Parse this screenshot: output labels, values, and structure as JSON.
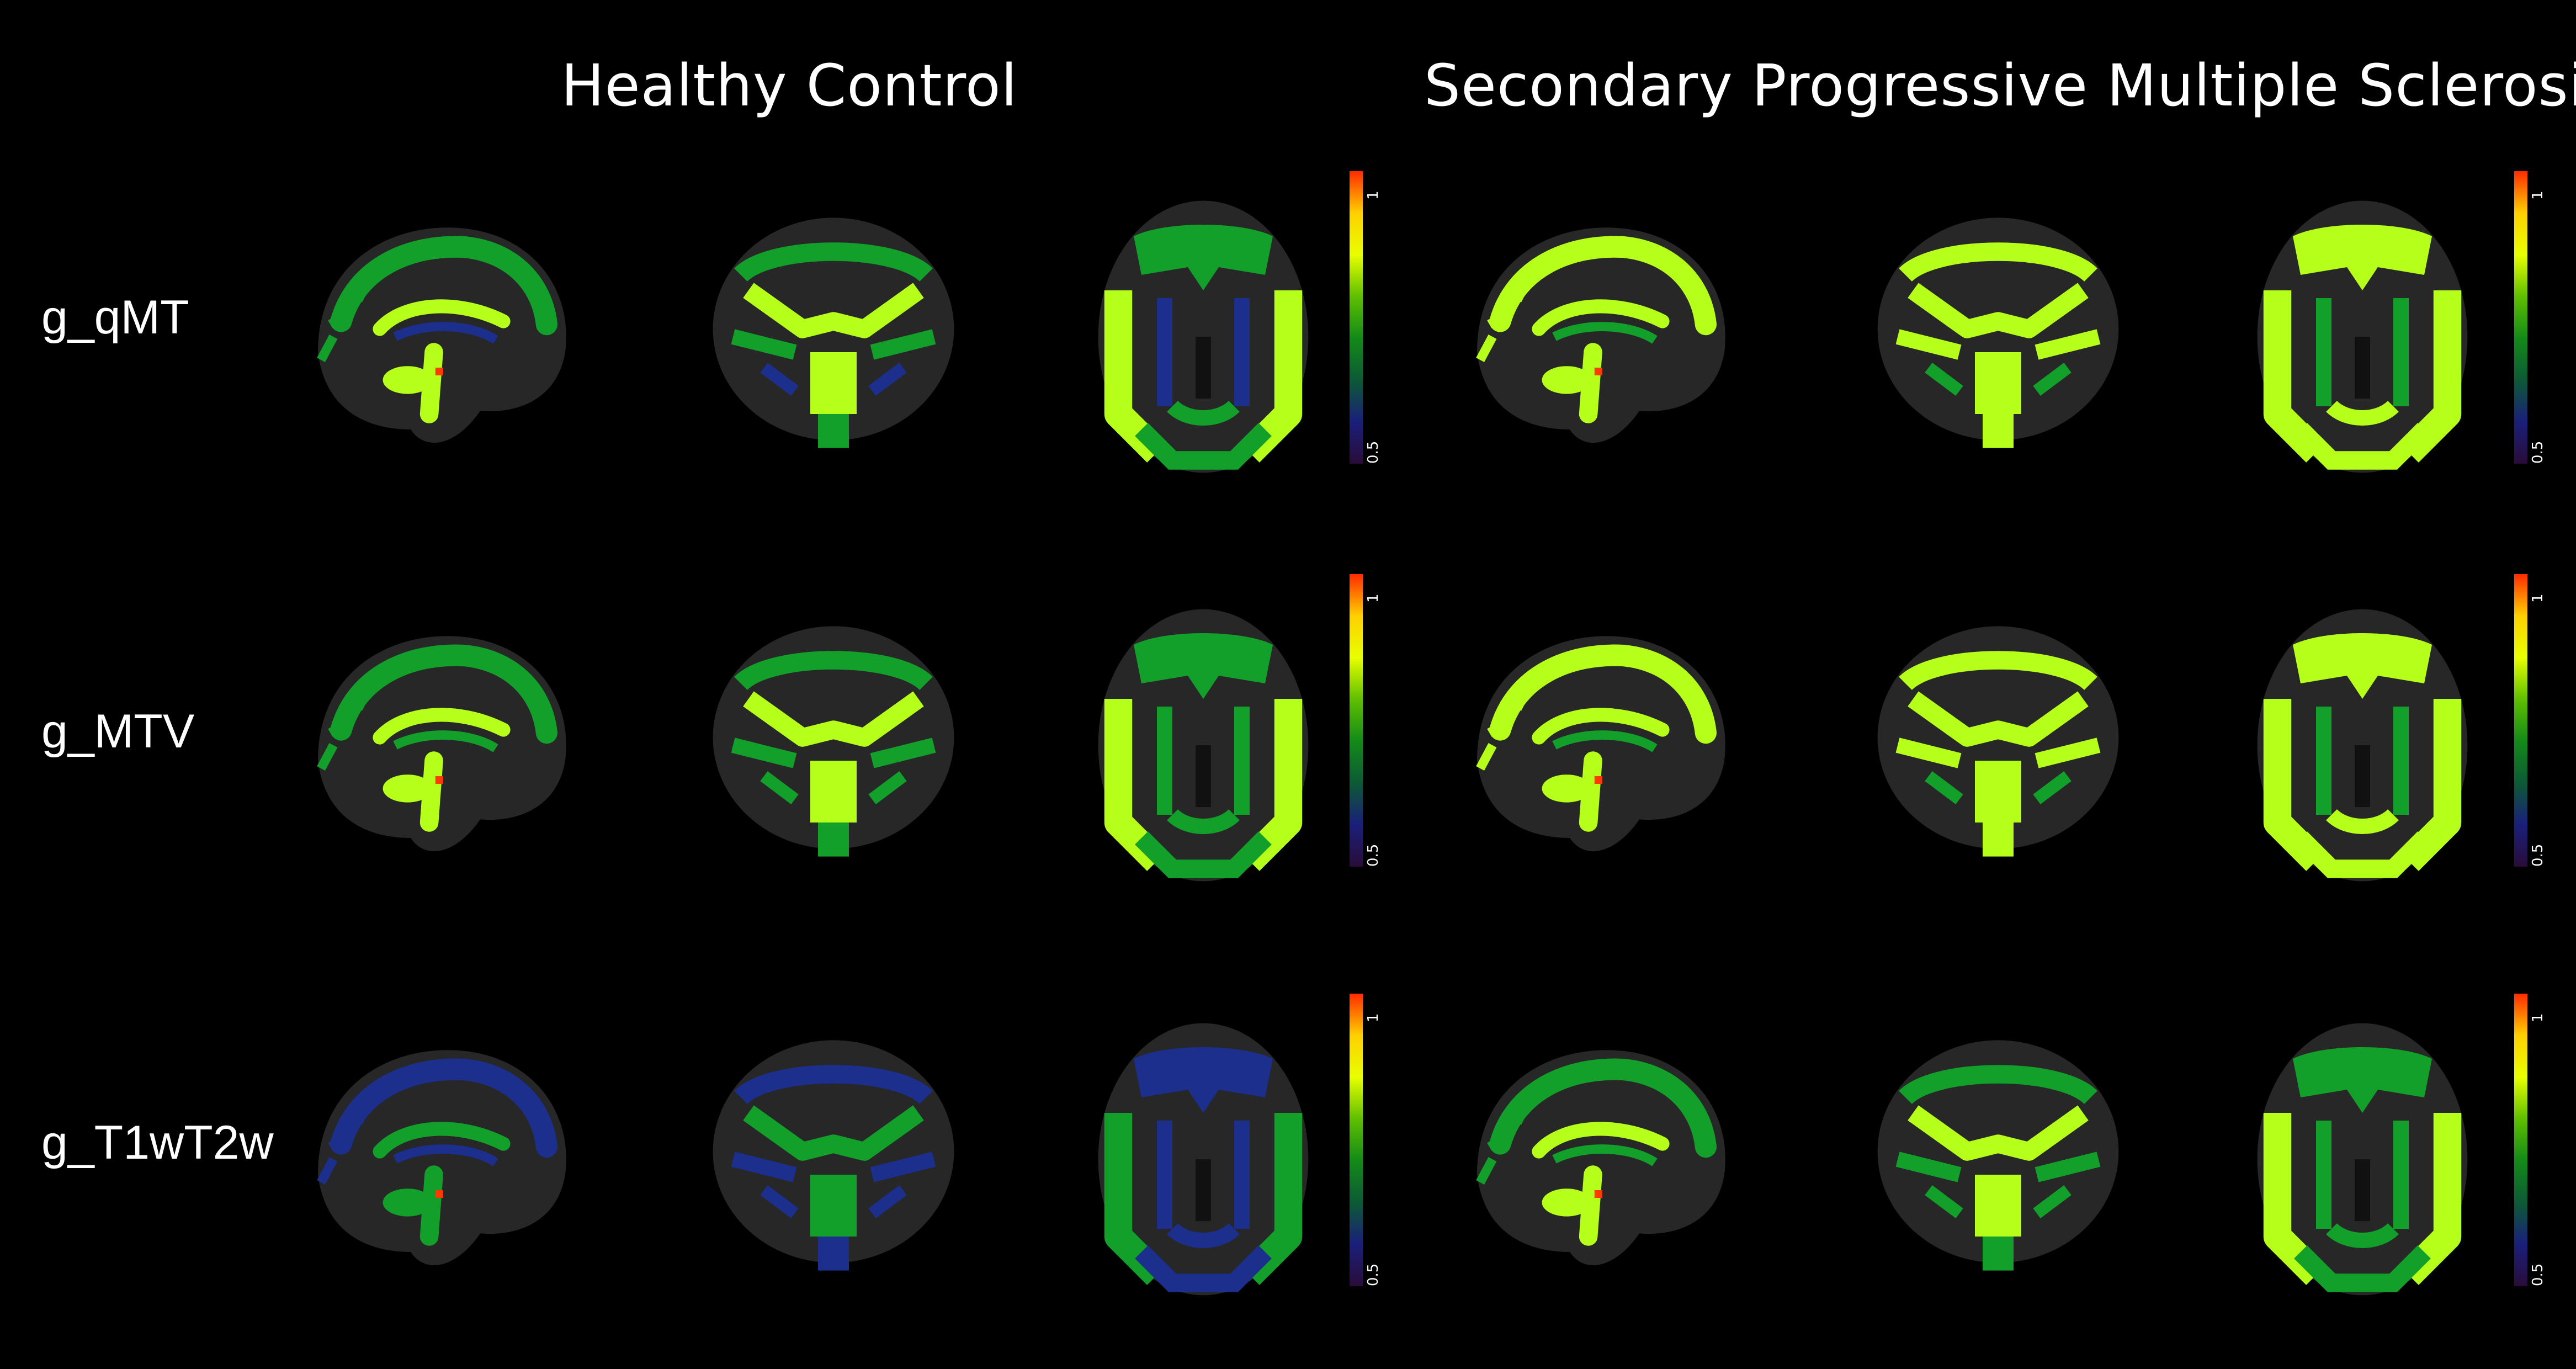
{
  "groups": [
    {
      "title": "Healthy Control"
    },
    {
      "title": "Secondary Progressive Multiple Sclerosis"
    }
  ],
  "rows": [
    {
      "label": "g_qMT"
    },
    {
      "label": "g_MTV"
    },
    {
      "label": "g_T1wT2w"
    }
  ],
  "views": [
    "sagittal",
    "coronal",
    "axial"
  ],
  "colorbar": {
    "max_label": "1",
    "min_label": "0.5",
    "colors": [
      "#ff2a00",
      "#ffd000",
      "#e8ff00",
      "#5fbf00",
      "#138a18",
      "#0d5a36",
      "#1a1f7a",
      "#2a0c3a"
    ]
  },
  "map_colors": {
    "background_tissue": "#2b2b2b",
    "low": "#1c2f8c",
    "mid": "#12a02a",
    "high": "#b6ff1a",
    "peak": "#ff3a00"
  }
}
